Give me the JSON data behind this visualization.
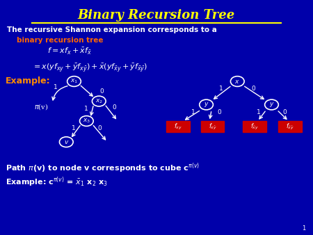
{
  "bg_color": "#0000AA",
  "title": "Binary Recursion Tree",
  "title_color": "#FFFF00",
  "subtitle_orange_color": "#FF6600",
  "example_color": "#FF8C00",
  "leaf_bg_color": "#CC0000",
  "text_color": "white"
}
